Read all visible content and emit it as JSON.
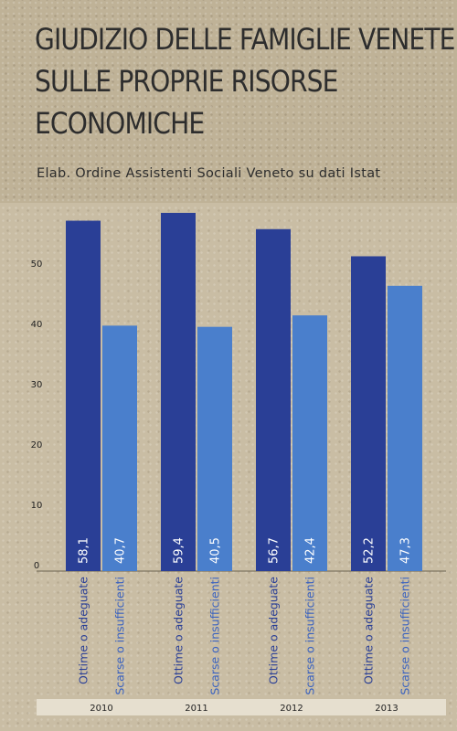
{
  "page": {
    "title_lines": [
      "GIUDIZIO DELLE FAMIGLIE VENETE",
      "SULLE PROPRIE RISORSE",
      "ECONOMICHE"
    ],
    "subtitle": "Elab. Ordine Assistenti Sociali Veneto su dati Istat"
  },
  "chart_data": {
    "type": "bar",
    "categories": [
      "2010",
      "2011",
      "2012",
      "2013"
    ],
    "series": [
      {
        "name": "Ottime o adeguate",
        "values": [
          58.1,
          59.4,
          56.7,
          52.2
        ],
        "labels": [
          "58,1",
          "59,4",
          "56,7",
          "52,2"
        ],
        "color": "#2a3f96",
        "label_color": "#2a3f96"
      },
      {
        "name": "Scarse o insufficienti",
        "values": [
          40.7,
          40.5,
          42.4,
          47.3
        ],
        "labels": [
          "40,7",
          "40,5",
          "42,4",
          "47,3"
        ],
        "color": "#4a7fcc",
        "label_color": "#3a62c0"
      }
    ],
    "y_ticks": [
      0,
      10,
      20,
      30,
      40,
      50
    ],
    "ylim": [
      0,
      60
    ],
    "grid": false
  }
}
